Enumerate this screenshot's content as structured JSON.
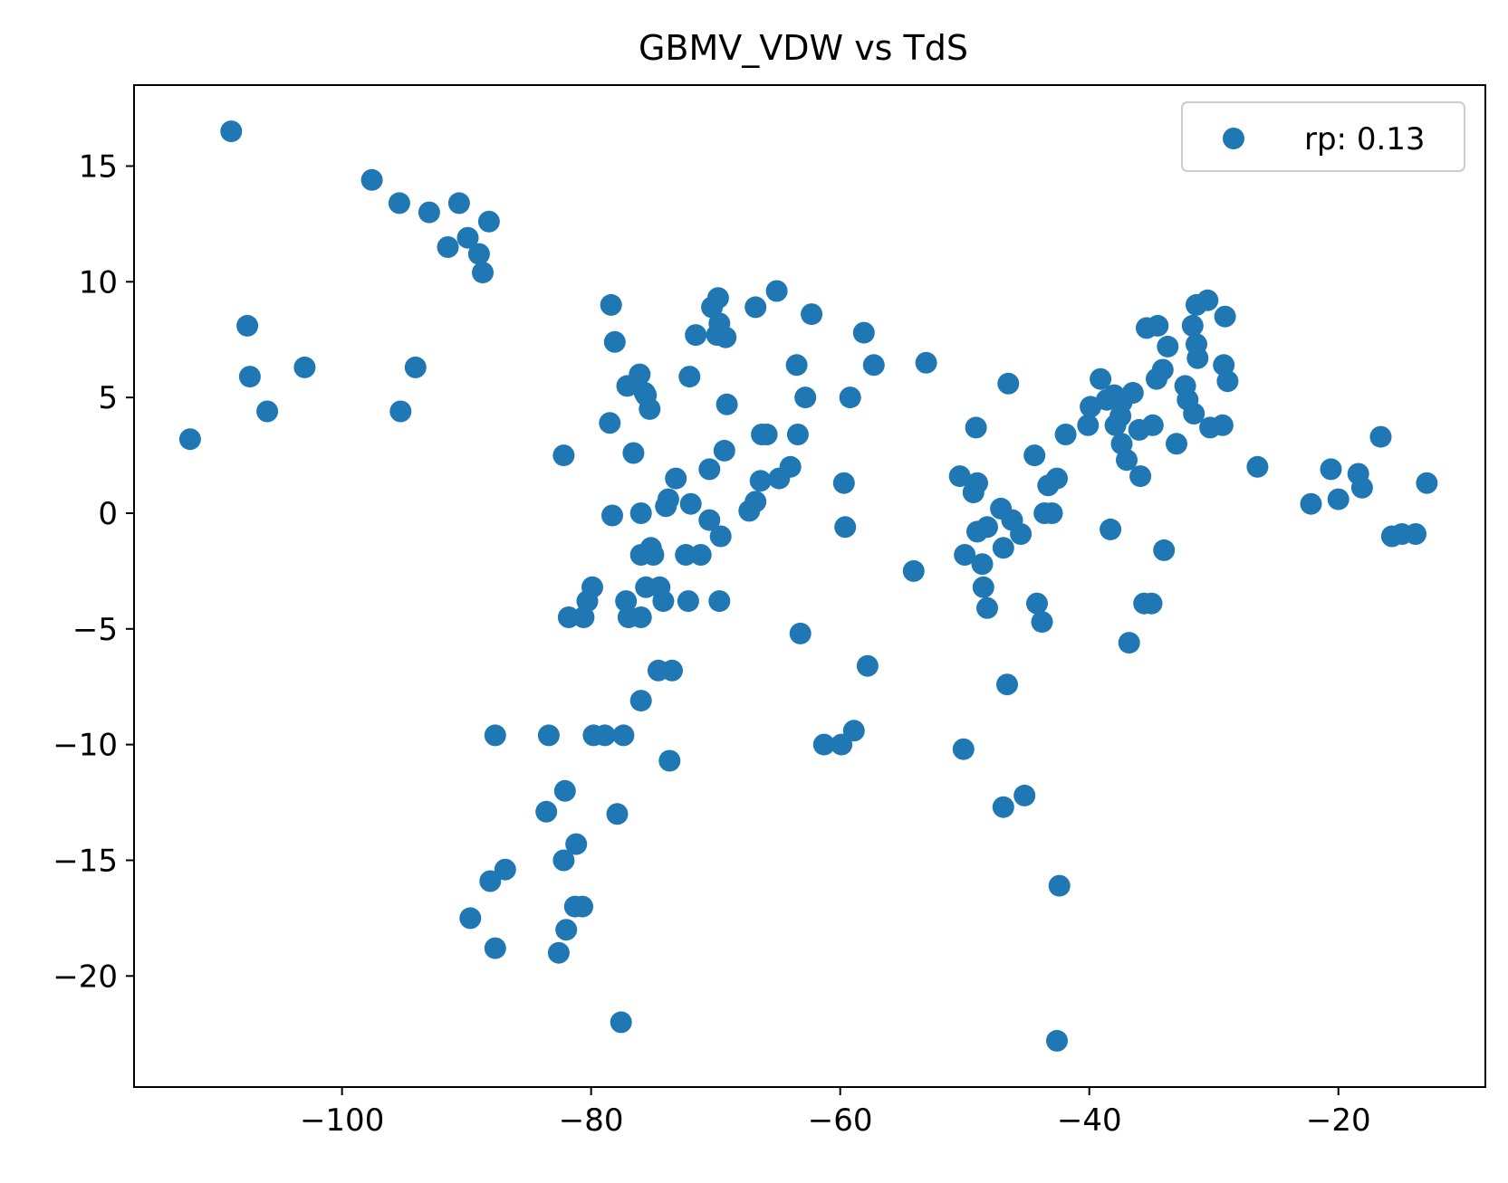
{
  "chart_data": {
    "type": "scatter",
    "title": "GBMV_VDW vs TdS",
    "xlabel": "",
    "ylabel": "",
    "xlim": [
      -116.7,
      -8.2
    ],
    "ylim": [
      -24.8,
      18.5
    ],
    "xticks": [
      -100,
      -80,
      -60,
      -40,
      -20
    ],
    "yticks": [
      15,
      10,
      5,
      0,
      -5,
      -10,
      -15,
      -20
    ],
    "xtick_labels": [
      "−100",
      "−80",
      "−60",
      "−40",
      "−20"
    ],
    "ytick_labels": [
      "15",
      "10",
      "5",
      "0",
      "−5",
      "−10",
      "−15",
      "−20"
    ],
    "grid": false,
    "legend_position": "top-right",
    "series": [
      {
        "name": "rp: 0.13",
        "color": "#1f77b4",
        "points": [
          [
            -108.9,
            16.5
          ],
          [
            -112.2,
            3.2
          ],
          [
            -107.6,
            8.1
          ],
          [
            -107.4,
            5.9
          ],
          [
            -106.0,
            4.4
          ],
          [
            -103.0,
            6.3
          ],
          [
            -97.6,
            14.4
          ],
          [
            -95.4,
            13.4
          ],
          [
            -93.0,
            13.0
          ],
          [
            -90.6,
            13.4
          ],
          [
            -89.9,
            11.9
          ],
          [
            -91.5,
            11.5
          ],
          [
            -89.0,
            11.2
          ],
          [
            -88.7,
            10.4
          ],
          [
            -88.2,
            12.6
          ],
          [
            -95.3,
            4.4
          ],
          [
            -94.1,
            6.3
          ],
          [
            -87.7,
            -9.6
          ],
          [
            -83.4,
            -9.6
          ],
          [
            -83.6,
            -12.9
          ],
          [
            -82.1,
            -12.0
          ],
          [
            -82.2,
            -15.0
          ],
          [
            -81.2,
            -14.3
          ],
          [
            -81.3,
            -17.0
          ],
          [
            -80.7,
            -17.0
          ],
          [
            -82.0,
            -18.0
          ],
          [
            -82.6,
            -19.0
          ],
          [
            -88.1,
            -15.9
          ],
          [
            -86.9,
            -15.4
          ],
          [
            -89.7,
            -17.5
          ],
          [
            -87.7,
            -18.8
          ],
          [
            -82.2,
            2.5
          ],
          [
            -81.8,
            -4.5
          ],
          [
            -80.6,
            -4.5
          ],
          [
            -80.3,
            -3.8
          ],
          [
            -79.9,
            -3.2
          ],
          [
            -79.8,
            -9.6
          ],
          [
            -78.9,
            -9.6
          ],
          [
            -77.4,
            -9.6
          ],
          [
            -77.9,
            -13.0
          ],
          [
            -77.6,
            -22.0
          ],
          [
            -78.4,
            9.0
          ],
          [
            -78.1,
            7.4
          ],
          [
            -78.5,
            3.9
          ],
          [
            -78.3,
            -0.1
          ],
          [
            -77.1,
            5.5
          ],
          [
            -76.6,
            2.6
          ],
          [
            -76.1,
            6.0
          ],
          [
            -75.7,
            5.2
          ],
          [
            -75.6,
            5.1
          ],
          [
            -75.3,
            4.5
          ],
          [
            -76.0,
            0.0
          ],
          [
            -76.0,
            -1.8
          ],
          [
            -75.2,
            -1.5
          ],
          [
            -75.0,
            -1.8
          ],
          [
            -77.2,
            -3.8
          ],
          [
            -77.0,
            -4.5
          ],
          [
            -76.0,
            -4.5
          ],
          [
            -75.6,
            -3.2
          ],
          [
            -74.5,
            -3.2
          ],
          [
            -74.2,
            -3.8
          ],
          [
            -74.6,
            -6.8
          ],
          [
            -73.5,
            -6.8
          ],
          [
            -76.0,
            -8.1
          ],
          [
            -73.7,
            -10.7
          ],
          [
            -74.0,
            0.3
          ],
          [
            -73.8,
            0.6
          ],
          [
            -73.2,
            1.5
          ],
          [
            -72.4,
            -1.8
          ],
          [
            -72.2,
            -3.8
          ],
          [
            -72.0,
            0.4
          ],
          [
            -71.2,
            -1.8
          ],
          [
            -72.1,
            5.9
          ],
          [
            -71.6,
            7.7
          ],
          [
            -70.5,
            1.9
          ],
          [
            -70.5,
            -0.3
          ],
          [
            -69.6,
            -1.0
          ],
          [
            -69.7,
            -3.8
          ],
          [
            -69.3,
            2.7
          ],
          [
            -69.1,
            4.7
          ],
          [
            -70.3,
            8.9
          ],
          [
            -69.8,
            9.3
          ],
          [
            -69.7,
            8.2
          ],
          [
            -69.2,
            7.6
          ],
          [
            -69.9,
            7.7
          ],
          [
            -66.8,
            8.9
          ],
          [
            -65.1,
            9.6
          ],
          [
            -62.3,
            8.6
          ],
          [
            -63.5,
            6.4
          ],
          [
            -62.8,
            5.0
          ],
          [
            -63.4,
            3.4
          ],
          [
            -64.0,
            2.0
          ],
          [
            -64.9,
            1.5
          ],
          [
            -65.9,
            3.4
          ],
          [
            -66.3,
            3.4
          ],
          [
            -66.4,
            1.4
          ],
          [
            -66.8,
            0.5
          ],
          [
            -67.3,
            0.1
          ],
          [
            -58.1,
            7.8
          ],
          [
            -57.3,
            6.4
          ],
          [
            -59.2,
            5.0
          ],
          [
            -59.7,
            1.3
          ],
          [
            -59.6,
            -0.6
          ],
          [
            -53.1,
            6.5
          ],
          [
            -54.1,
            -2.5
          ],
          [
            -63.2,
            -5.2
          ],
          [
            -57.8,
            -6.6
          ],
          [
            -58.9,
            -9.4
          ],
          [
            -59.9,
            -10.0
          ],
          [
            -61.3,
            -10.0
          ],
          [
            -50.4,
            1.6
          ],
          [
            -49.0,
            1.3
          ],
          [
            -49.3,
            0.9
          ],
          [
            -50.0,
            -1.8
          ],
          [
            -49.0,
            -0.8
          ],
          [
            -48.2,
            -0.6
          ],
          [
            -48.6,
            -2.2
          ],
          [
            -48.5,
            -3.2
          ],
          [
            -48.2,
            -4.1
          ],
          [
            -47.1,
            0.2
          ],
          [
            -46.2,
            -0.3
          ],
          [
            -46.9,
            -1.5
          ],
          [
            -45.5,
            -0.9
          ],
          [
            -50.1,
            -10.2
          ],
          [
            -46.6,
            -7.4
          ],
          [
            -46.9,
            -12.7
          ],
          [
            -45.2,
            -12.2
          ],
          [
            -49.1,
            3.7
          ],
          [
            -46.5,
            5.6
          ],
          [
            -44.4,
            2.5
          ],
          [
            -43.3,
            1.2
          ],
          [
            -42.6,
            1.5
          ],
          [
            -44.2,
            -3.9
          ],
          [
            -43.8,
            -4.7
          ],
          [
            -43.6,
            0.0
          ],
          [
            -43.0,
            0.0
          ],
          [
            -42.4,
            -16.1
          ],
          [
            -42.6,
            -22.8
          ],
          [
            -41.9,
            3.4
          ],
          [
            -40.1,
            3.8
          ],
          [
            -39.9,
            4.6
          ],
          [
            -39.1,
            5.8
          ],
          [
            -38.6,
            4.9
          ],
          [
            -38.0,
            5.1
          ],
          [
            -37.5,
            4.2
          ],
          [
            -37.4,
            4.8
          ],
          [
            -37.9,
            3.8
          ],
          [
            -37.4,
            3.0
          ],
          [
            -37.0,
            2.3
          ],
          [
            -36.5,
            5.2
          ],
          [
            -36.0,
            3.6
          ],
          [
            -35.9,
            1.6
          ],
          [
            -34.9,
            3.8
          ],
          [
            -38.3,
            -0.7
          ],
          [
            -36.8,
            -5.6
          ],
          [
            -35.6,
            -3.9
          ],
          [
            -35.0,
            -3.9
          ],
          [
            -34.0,
            -1.6
          ],
          [
            -33.0,
            3.0
          ],
          [
            -35.4,
            8.0
          ],
          [
            -34.5,
            8.1
          ],
          [
            -33.7,
            7.2
          ],
          [
            -34.1,
            6.2
          ],
          [
            -34.6,
            5.8
          ],
          [
            -32.3,
            5.5
          ],
          [
            -32.1,
            4.9
          ],
          [
            -31.6,
            4.3
          ],
          [
            -31.7,
            8.1
          ],
          [
            -31.4,
            7.3
          ],
          [
            -31.3,
            6.7
          ],
          [
            -31.4,
            9.0
          ],
          [
            -30.5,
            9.2
          ],
          [
            -29.1,
            8.5
          ],
          [
            -29.2,
            6.4
          ],
          [
            -28.9,
            5.7
          ],
          [
            -29.3,
            3.8
          ],
          [
            -30.3,
            3.7
          ],
          [
            -26.5,
            2.0
          ],
          [
            -22.2,
            0.4
          ],
          [
            -20.6,
            1.9
          ],
          [
            -20.0,
            0.6
          ],
          [
            -18.4,
            1.7
          ],
          [
            -18.1,
            1.1
          ],
          [
            -16.6,
            3.3
          ],
          [
            -15.7,
            -1.0
          ],
          [
            -14.9,
            -0.9
          ],
          [
            -13.8,
            -0.9
          ],
          [
            -12.9,
            1.3
          ]
        ]
      }
    ]
  }
}
